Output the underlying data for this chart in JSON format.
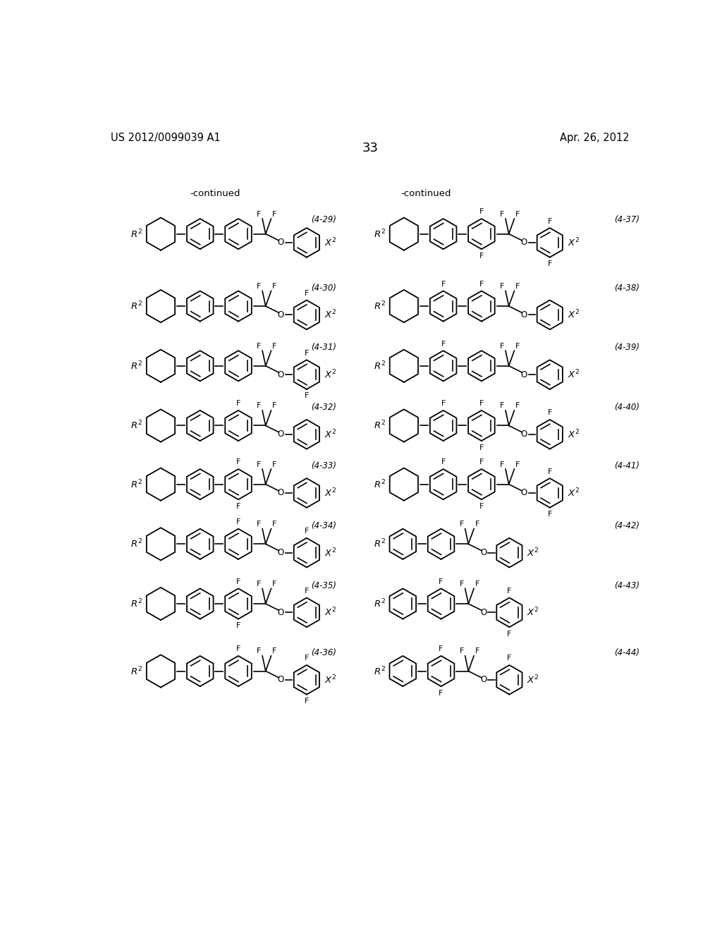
{
  "page_number": "33",
  "patent_number": "US 2012/0099039 A1",
  "patent_date": "Apr. 26, 2012",
  "background_color": "#ffffff",
  "text_color": "#000000",
  "continued_left": "-continued",
  "continued_right": "-continued",
  "compound_labels_left": [
    "(4-29)",
    "(4-30)",
    "(4-31)",
    "(4-32)",
    "(4-33)",
    "(4-34)",
    "(4-35)",
    "(4-36)"
  ],
  "compound_labels_right": [
    "(4-37)",
    "(4-38)",
    "(4-39)",
    "(4-40)",
    "(4-41)",
    "(4-42)",
    "(4-43)",
    "(4-44)"
  ],
  "left_structs": [
    {
      "ring3_Ft": false,
      "ring3_Fb": false,
      "end_Ft": false,
      "end_Fb": false
    },
    {
      "ring3_Ft": false,
      "ring3_Fb": false,
      "end_Ft": true,
      "end_Fb": false
    },
    {
      "ring3_Ft": false,
      "ring3_Fb": false,
      "end_Ft": true,
      "end_Fb": true
    },
    {
      "ring3_Ft": true,
      "ring3_Fb": false,
      "end_Ft": false,
      "end_Fb": false
    },
    {
      "ring3_Ft": true,
      "ring3_Fb": true,
      "end_Ft": false,
      "end_Fb": false
    },
    {
      "ring3_Ft": true,
      "ring3_Fb": false,
      "end_Ft": true,
      "end_Fb": false
    },
    {
      "ring3_Ft": true,
      "ring3_Fb": true,
      "end_Ft": true,
      "end_Fb": false
    },
    {
      "ring3_Ft": true,
      "ring3_Fb": false,
      "end_Ft": true,
      "end_Fb": true
    }
  ],
  "right_structs": [
    {
      "ring2_Ft": false,
      "ring3_Ft": true,
      "ring3_Fb": true,
      "end_Ft": true,
      "end_Fb": true,
      "two_benz": false
    },
    {
      "ring2_Ft": true,
      "ring3_Ft": true,
      "ring3_Fb": false,
      "end_Ft": false,
      "end_Fb": false,
      "two_benz": false
    },
    {
      "ring2_Ft": true,
      "ring3_Ft": false,
      "ring3_Fb": false,
      "end_Ft": false,
      "end_Fb": false,
      "two_benz": false
    },
    {
      "ring2_Ft": true,
      "ring3_Ft": true,
      "ring3_Fb": true,
      "end_Ft": true,
      "end_Fb": false,
      "two_benz": false
    },
    {
      "ring2_Ft": true,
      "ring3_Ft": true,
      "ring3_Fb": true,
      "end_Ft": true,
      "end_Fb": true,
      "two_benz": false
    },
    {
      "ring2_Ft": false,
      "ring3_Ft": false,
      "ring3_Fb": false,
      "end_Ft": false,
      "end_Fb": false,
      "two_benz": true
    },
    {
      "ring2_Ft": false,
      "ring3_Ft": true,
      "ring3_Fb": false,
      "end_Ft": true,
      "end_Fb": true,
      "two_benz": true
    },
    {
      "ring2_Ft": false,
      "ring3_Ft": true,
      "ring3_Fb": true,
      "end_Ft": true,
      "end_Fb": false,
      "two_benz": true
    }
  ]
}
